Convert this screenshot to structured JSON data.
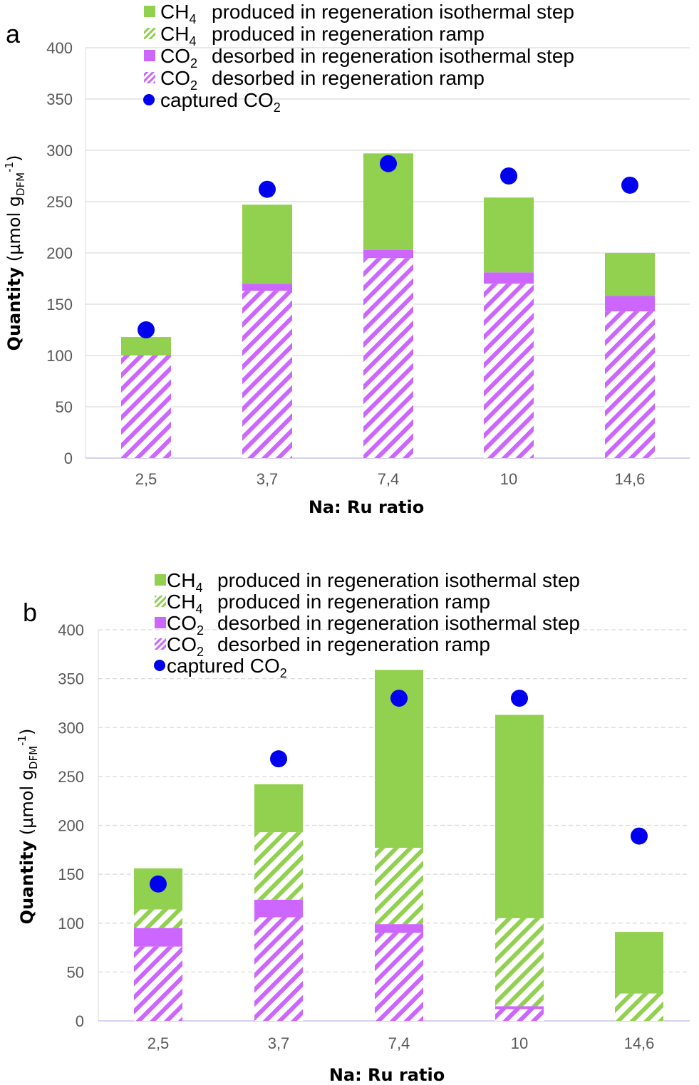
{
  "legend": [
    {
      "key": "ch4_iso",
      "formula": "CH",
      "sub": "4",
      "text": "produced in regeneration isothermal step",
      "color": "#92d050",
      "hatched": false,
      "marker": "square"
    },
    {
      "key": "ch4_ramp",
      "formula": "CH",
      "sub": "4",
      "text": "produced in regeneration ramp",
      "color": "#92d050",
      "hatched": true,
      "marker": "square"
    },
    {
      "key": "co2_iso",
      "formula": "CO",
      "sub": "2",
      "text": "desorbed in regeneration isothermal step",
      "color": "#cc66ff",
      "hatched": false,
      "marker": "square"
    },
    {
      "key": "co2_ramp",
      "formula": "CO",
      "sub": "2",
      "text": "desorbed in regeneration ramp",
      "color": "#cc66ff",
      "hatched": true,
      "marker": "square"
    },
    {
      "key": "captured",
      "formula": "captured CO",
      "sub": "2",
      "text": "",
      "color": "#0000ee",
      "hatched": false,
      "marker": "circle"
    }
  ],
  "ylabel": {
    "bold": "Quantity",
    "rest": " (µmol g",
    "sub": "DFM",
    "sup": "-1",
    "close": ")"
  },
  "chart_data": [
    {
      "panel": "a",
      "type": "bar",
      "stacked": true,
      "categories": [
        "2,5",
        "3,7",
        "7,4",
        "10",
        "14,6"
      ],
      "xlabel": "Na: Ru ratio",
      "ylim": [
        0,
        400
      ],
      "yticks": [
        0,
        50,
        100,
        150,
        200,
        250,
        300,
        350,
        400
      ],
      "grid": "solid",
      "legend_position": "top",
      "series": [
        {
          "key": "co2_ramp",
          "values": [
            100,
            163,
            195,
            170,
            143
          ]
        },
        {
          "key": "co2_iso",
          "values": [
            0,
            7,
            8,
            11,
            15
          ]
        },
        {
          "key": "ch4_ramp",
          "values": [
            0,
            0,
            0,
            0,
            0
          ]
        },
        {
          "key": "ch4_iso",
          "values": [
            18,
            77,
            94,
            73,
            42
          ]
        }
      ],
      "captured_co2": [
        125,
        262,
        287,
        275,
        266
      ]
    },
    {
      "panel": "b",
      "type": "bar",
      "stacked": true,
      "categories": [
        "2,5",
        "3,7",
        "7,4",
        "10",
        "14,6"
      ],
      "xlabel": "Na: Ru ratio",
      "ylim": [
        0,
        400
      ],
      "yticks": [
        0,
        50,
        100,
        150,
        200,
        250,
        300,
        350,
        400
      ],
      "grid": "dashed",
      "legend_position": "top",
      "series": [
        {
          "key": "co2_ramp",
          "values": [
            76,
            106,
            90,
            12,
            0
          ]
        },
        {
          "key": "co2_iso",
          "values": [
            19,
            18,
            9,
            3,
            0
          ]
        },
        {
          "key": "ch4_ramp",
          "values": [
            19,
            69,
            78,
            90,
            28
          ]
        },
        {
          "key": "ch4_iso",
          "values": [
            42,
            49,
            182,
            208,
            63
          ]
        }
      ],
      "captured_co2": [
        140,
        268,
        330,
        330,
        189
      ]
    }
  ]
}
